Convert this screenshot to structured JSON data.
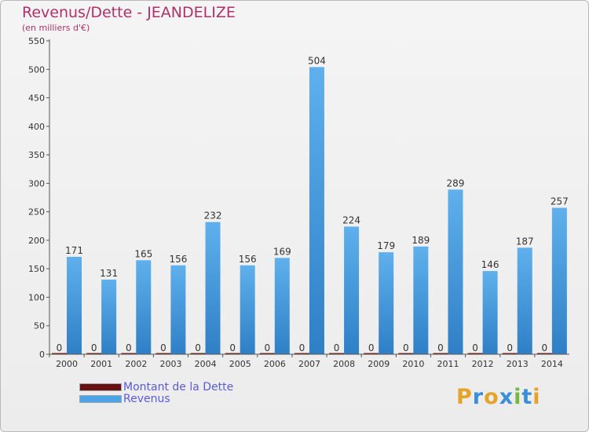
{
  "title": "Revenus/Dette - JEANDELIZE",
  "subtitle": "(en milliers d'€)",
  "legend": [
    {
      "label": "Montant de la Dette",
      "color": "#6b1010"
    },
    {
      "label": "Revenus",
      "color": "#4da3e8"
    }
  ],
  "logo": {
    "letters": [
      "P",
      "r",
      "o",
      "x",
      "i",
      "t",
      "i"
    ],
    "colors": [
      "#e6a32a",
      "#3b8ed8",
      "#e6a32a",
      "#3b8ed8",
      "#79b83e",
      "#3b8ed8",
      "#e6a32a"
    ]
  },
  "chart_data": {
    "type": "bar",
    "categories": [
      "2000",
      "2001",
      "2002",
      "2003",
      "2004",
      "2005",
      "2006",
      "2007",
      "2008",
      "2009",
      "2010",
      "2011",
      "2012",
      "2013",
      "2014"
    ],
    "series": [
      {
        "name": "Montant de la Dette",
        "color": "#6b1010",
        "values": [
          0,
          0,
          0,
          0,
          0,
          0,
          0,
          0,
          0,
          0,
          0,
          0,
          0,
          0,
          0
        ]
      },
      {
        "name": "Revenus",
        "color": "#4da3e8",
        "values": [
          171,
          131,
          165,
          156,
          232,
          156,
          169,
          504,
          224,
          179,
          189,
          289,
          146,
          187,
          257
        ]
      }
    ],
    "ylim": [
      0,
      550
    ],
    "yticks": [
      0,
      50,
      100,
      150,
      200,
      250,
      300,
      350,
      400,
      450,
      500,
      550
    ],
    "grid": false,
    "legend_position": "bottom-left"
  }
}
